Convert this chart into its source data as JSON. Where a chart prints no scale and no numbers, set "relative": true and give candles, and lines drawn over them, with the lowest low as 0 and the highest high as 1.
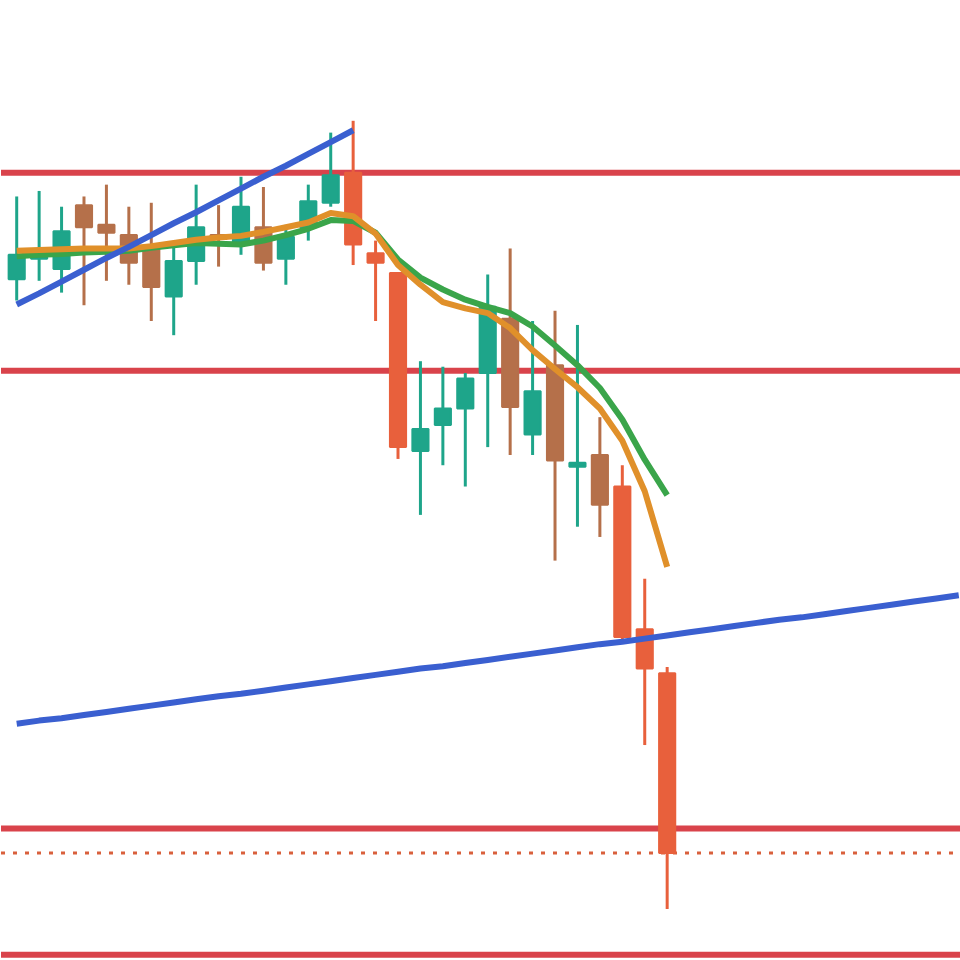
{
  "chart_data": {
    "type": "candlestick",
    "relative": true,
    "tick_labels": false,
    "grid": false,
    "categories": [
      null,
      null,
      null,
      null,
      null,
      null,
      null,
      null,
      null,
      null,
      null,
      null,
      null,
      null,
      null,
      null,
      null,
      null,
      null,
      null,
      null,
      null,
      null,
      null,
      null,
      null,
      null,
      null,
      null,
      null,
      null,
      null,
      null,
      null,
      null,
      null,
      null,
      null,
      null,
      null,
      null,
      null,
      null
    ],
    "ohlc": [
      [
        0.799,
        0.904,
        0.772,
        0.83
      ],
      [
        0.825,
        0.911,
        0.797,
        0.835
      ],
      [
        0.812,
        0.891,
        0.782,
        0.86
      ],
      [
        0.893,
        0.904,
        0.766,
        0.865
      ],
      [
        0.868,
        0.919,
        0.797,
        0.858
      ],
      [
        0.855,
        0.891,
        0.792,
        0.82
      ],
      [
        0.84,
        0.896,
        0.746,
        0.789
      ],
      [
        0.777,
        0.843,
        0.728,
        0.822
      ],
      [
        0.822,
        0.919,
        0.792,
        0.865
      ],
      [
        0.855,
        0.893,
        0.815,
        0.85
      ],
      [
        0.843,
        0.929,
        0.83,
        0.891
      ],
      [
        0.865,
        0.916,
        0.81,
        0.82
      ],
      [
        0.825,
        0.868,
        0.792,
        0.853
      ],
      [
        0.865,
        0.919,
        0.848,
        0.898
      ],
      [
        0.896,
        0.985,
        0.891,
        0.931
      ],
      [
        0.934,
        1.0,
        0.817,
        0.843
      ],
      [
        0.832,
        0.848,
        0.746,
        0.82
      ],
      [
        0.807,
        0.807,
        0.571,
        0.586
      ],
      [
        0.581,
        0.695,
        0.5,
        0.609
      ],
      [
        0.614,
        0.688,
        0.563,
        0.635
      ],
      [
        0.635,
        0.68,
        0.536,
        0.673
      ],
      [
        0.68,
        0.805,
        0.586,
        0.764
      ],
      [
        0.749,
        0.838,
        0.576,
        0.637
      ],
      [
        0.602,
        0.746,
        0.576,
        0.657
      ],
      [
        0.69,
        0.759,
        0.442,
        0.569
      ],
      [
        0.561,
        0.741,
        0.485,
        0.566
      ],
      [
        0.576,
        0.624,
        0.472,
        0.513
      ],
      [
        0.536,
        0.563,
        0.34,
        0.345
      ],
      [
        0.355,
        0.419,
        0.208,
        0.305
      ],
      [
        0.299,
        0.307,
        0.0,
        0.071
      ],
      null,
      null,
      null,
      null,
      null,
      null,
      null,
      null,
      null,
      null,
      null,
      null,
      null
    ],
    "colors": [
      "#1ea58a",
      "#1ea58a",
      "#1ea58a",
      "#b5704a",
      "#b5704a",
      "#b5704a",
      "#b5704a",
      "#1ea58a",
      "#1ea58a",
      "#b5704a",
      "#1ea58a",
      "#b5704a",
      "#1ea58a",
      "#1ea58a",
      "#1ea58a",
      "#e8603c",
      "#e8603c",
      "#e8603c",
      "#1ea58a",
      "#1ea58a",
      "#1ea58a",
      "#1ea58a",
      "#b5704a",
      "#1ea58a",
      "#b5704a",
      "#1ea58a",
      "#b5704a",
      "#e8603c",
      "#e8603c",
      "#e8603c",
      null,
      null,
      null,
      null,
      null,
      null,
      null,
      null,
      null,
      null,
      null,
      null,
      null
    ],
    "series": [
      {
        "type": "line",
        "color": "#3aa54a",
        "values": [
          0.828,
          0.83,
          0.831,
          0.833,
          0.834,
          0.835,
          0.839,
          0.842,
          0.845,
          0.844,
          0.843,
          0.848,
          0.855,
          0.863,
          0.874,
          0.873,
          0.858,
          0.824,
          0.801,
          0.786,
          0.773,
          0.764,
          0.756,
          0.739,
          0.715,
          0.69,
          0.661,
          0.621,
          0.57,
          0.525,
          null,
          null,
          null,
          null,
          null,
          null,
          null,
          null,
          null,
          null,
          null,
          null,
          null
        ]
      },
      {
        "type": "line",
        "color": "#e0902a",
        "values": [
          0.835,
          0.836,
          0.837,
          0.838,
          0.838,
          0.838,
          0.841,
          0.845,
          0.849,
          0.852,
          0.854,
          0.859,
          0.865,
          0.871,
          0.883,
          0.879,
          0.857,
          0.817,
          0.792,
          0.77,
          0.762,
          0.756,
          0.737,
          0.709,
          0.685,
          0.662,
          0.635,
          0.594,
          0.53,
          0.434,
          null,
          null,
          null,
          null,
          null,
          null,
          null,
          null,
          null,
          null,
          null,
          null,
          null
        ]
      },
      {
        "type": "line",
        "color": "#3a5fd0",
        "values": [
          0.767,
          0.781,
          0.796,
          0.811,
          0.826,
          0.84,
          0.855,
          0.87,
          0.884,
          0.899,
          0.914,
          0.929,
          0.943,
          0.958,
          0.973,
          0.988,
          null,
          null,
          null,
          null,
          null,
          null,
          null,
          null,
          null,
          null,
          null,
          null,
          null,
          null,
          null,
          null,
          null,
          null,
          null,
          null,
          null,
          null,
          null,
          null,
          null,
          null,
          null
        ]
      },
      {
        "type": "line",
        "color": "#3a5fd0",
        "values": [
          0.235,
          0.239,
          0.242,
          0.246,
          0.25,
          0.254,
          0.258,
          0.262,
          0.266,
          0.27,
          0.273,
          0.277,
          0.281,
          0.285,
          0.289,
          0.293,
          0.297,
          0.301,
          0.305,
          0.308,
          0.312,
          0.316,
          0.32,
          0.324,
          0.328,
          0.332,
          0.336,
          0.339,
          0.343,
          0.347,
          0.351,
          0.355,
          0.359,
          0.363,
          0.367,
          0.37,
          0.374,
          0.378,
          0.382,
          0.386,
          0.39,
          0.394,
          0.398
        ]
      }
    ],
    "ref_lines": [
      {
        "axis": "y",
        "value": 0.934,
        "color": "#d9434b"
      },
      {
        "axis": "y",
        "value": 0.683,
        "color": "#d9434b"
      },
      {
        "axis": "y",
        "value": 0.102,
        "color": "#d9434b"
      },
      {
        "axis": "y",
        "value": -0.058,
        "color": "#d9434b"
      },
      {
        "axis": "y",
        "value": 0.071,
        "color": "#d9603c",
        "line_style": "dotted"
      }
    ]
  }
}
